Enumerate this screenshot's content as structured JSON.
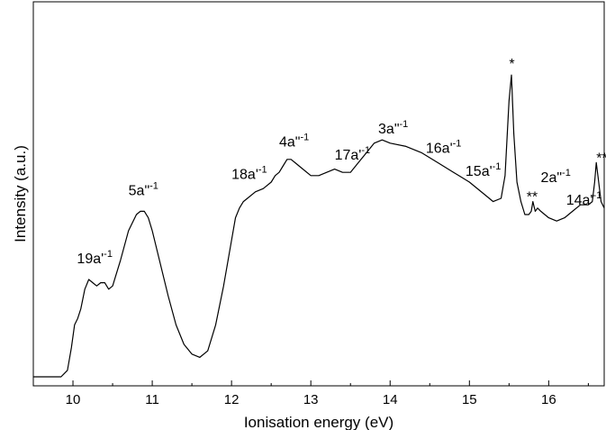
{
  "chart_data": {
    "type": "line",
    "xlabel": "Ionisation energy (eV)",
    "ylabel": "Intensity (a.u.)",
    "xlim": [
      9.5,
      16.7
    ],
    "ylim": [
      0,
      1.0
    ],
    "x_ticks": [
      "10",
      "11",
      "12",
      "13",
      "14",
      "15",
      "16"
    ],
    "y_ticks_labeled": false,
    "grid": false,
    "legend": "none",
    "line_color": "#000000",
    "series": [
      {
        "x": [
          9.5,
          9.85,
          9.93,
          9.98,
          10.02,
          10.06,
          10.1,
          10.15,
          10.2,
          10.25,
          10.3,
          10.35,
          10.4,
          10.45,
          10.5,
          10.6,
          10.7,
          10.8,
          10.85,
          10.9,
          10.95,
          11.0,
          11.1,
          11.2,
          11.3,
          11.4,
          11.5,
          11.6,
          11.7,
          11.8,
          11.9,
          12.0,
          12.05,
          12.1,
          12.15,
          12.2,
          12.3,
          12.4,
          12.5,
          12.55,
          12.6,
          12.65,
          12.7,
          12.75,
          12.8,
          12.9,
          13.0,
          13.1,
          13.2,
          13.3,
          13.4,
          13.5,
          13.6,
          13.7,
          13.8,
          13.9,
          14.0,
          14.2,
          14.4,
          14.6,
          14.8,
          15.0,
          15.2,
          15.3,
          15.4,
          15.45,
          15.5,
          15.53,
          15.56,
          15.6,
          15.65,
          15.7,
          15.75,
          15.78,
          15.8,
          15.83,
          15.86,
          15.9,
          16.0,
          16.1,
          16.2,
          16.3,
          16.4,
          16.5,
          16.55,
          16.58,
          16.6,
          16.62,
          16.66,
          16.7
        ],
        "y": [
          0.0,
          0.0,
          0.02,
          0.09,
          0.16,
          0.18,
          0.21,
          0.27,
          0.3,
          0.29,
          0.28,
          0.29,
          0.29,
          0.27,
          0.28,
          0.36,
          0.45,
          0.5,
          0.51,
          0.51,
          0.49,
          0.45,
          0.35,
          0.25,
          0.16,
          0.1,
          0.07,
          0.06,
          0.08,
          0.16,
          0.28,
          0.42,
          0.49,
          0.52,
          0.54,
          0.55,
          0.57,
          0.58,
          0.6,
          0.62,
          0.63,
          0.65,
          0.67,
          0.67,
          0.66,
          0.64,
          0.62,
          0.62,
          0.63,
          0.64,
          0.63,
          0.63,
          0.66,
          0.69,
          0.72,
          0.73,
          0.72,
          0.71,
          0.69,
          0.66,
          0.63,
          0.6,
          0.56,
          0.54,
          0.55,
          0.62,
          0.85,
          0.93,
          0.75,
          0.6,
          0.54,
          0.5,
          0.5,
          0.51,
          0.54,
          0.51,
          0.52,
          0.51,
          0.49,
          0.48,
          0.49,
          0.51,
          0.53,
          0.53,
          0.54,
          0.6,
          0.66,
          0.62,
          0.54,
          0.52
        ]
      }
    ],
    "annotations": [
      {
        "text": "19a'",
        "sup": "-1",
        "x": 10.05,
        "y": 0.35
      },
      {
        "text": "5a\"",
        "sup": "-1",
        "x": 10.7,
        "y": 0.56
      },
      {
        "text": "18a'",
        "sup": "-1",
        "x": 12.0,
        "y": 0.61
      },
      {
        "text": "4a\"",
        "sup": "-1",
        "x": 12.6,
        "y": 0.71
      },
      {
        "text": "17a'",
        "sup": "-1",
        "x": 13.3,
        "y": 0.67
      },
      {
        "text": "3a\"",
        "sup": "-1",
        "x": 13.85,
        "y": 0.75
      },
      {
        "text": "16a'",
        "sup": "-1",
        "x": 14.45,
        "y": 0.69
      },
      {
        "text": "15a'",
        "sup": "-1",
        "x": 14.95,
        "y": 0.62
      },
      {
        "text": "*",
        "sup": "",
        "x": 15.5,
        "y": 0.95
      },
      {
        "text": "2a\"",
        "sup": "-1",
        "x": 15.9,
        "y": 0.6
      },
      {
        "text": "**",
        "sup": "",
        "x": 15.72,
        "y": 0.54
      },
      {
        "text": "14a'",
        "sup": "-1",
        "x": 16.22,
        "y": 0.53
      },
      {
        "text": "***",
        "sup": "",
        "x": 16.6,
        "y": 0.66
      }
    ]
  }
}
